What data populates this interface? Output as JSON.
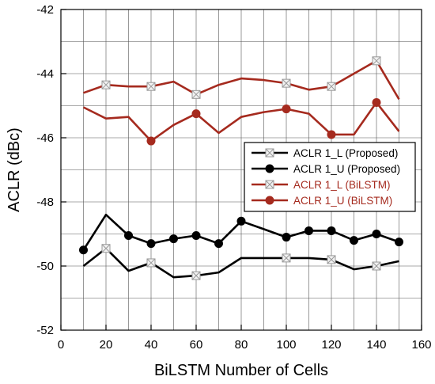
{
  "chart_data": {
    "type": "line",
    "xlabel": "BiLSTM Number of Cells",
    "ylabel": "ACLR (dBc)",
    "xlim": [
      0,
      160
    ],
    "ylim": [
      -52,
      -42
    ],
    "xticks": [
      0,
      20,
      40,
      60,
      80,
      100,
      120,
      140,
      160
    ],
    "yticks": [
      -52,
      -50,
      -48,
      -46,
      -44,
      -42
    ],
    "grid": true,
    "legend_position": "center-right",
    "series": [
      {
        "name": "ACLR 1_L (Proposed)",
        "color": "#000000",
        "marker": "square-x",
        "x": [
          10,
          20,
          30,
          40,
          50,
          60,
          70,
          80,
          90,
          100,
          110,
          120,
          130,
          140,
          150
        ],
        "y": [
          -50.0,
          -49.45,
          -50.15,
          -49.9,
          -50.35,
          -50.3,
          -50.2,
          -49.75,
          -49.75,
          -49.75,
          -49.75,
          -49.8,
          -50.1,
          -50.0,
          -49.85
        ]
      },
      {
        "name": "ACLR 1_U (Proposed)",
        "color": "#000000",
        "marker": "circle",
        "x": [
          10,
          20,
          30,
          40,
          50,
          60,
          70,
          80,
          90,
          100,
          110,
          120,
          130,
          140,
          150
        ],
        "y": [
          -49.5,
          -48.4,
          -49.05,
          -49.3,
          -49.15,
          -49.05,
          -49.3,
          -48.6,
          -48.85,
          -49.1,
          -48.9,
          -48.9,
          -49.2,
          -49.0,
          -49.25
        ]
      },
      {
        "name": "ACLR 1_L (BiLSTM)",
        "color": "#a52a1e",
        "marker": "square-x",
        "x": [
          10,
          20,
          30,
          40,
          50,
          60,
          70,
          80,
          90,
          100,
          110,
          120,
          130,
          140,
          150
        ],
        "y": [
          -44.6,
          -44.35,
          -44.4,
          -44.4,
          -44.25,
          -44.65,
          -44.35,
          -44.15,
          -44.2,
          -44.3,
          -44.5,
          -44.4,
          -44.0,
          -43.6,
          -44.8
        ]
      },
      {
        "name": "ACLR 1_U (BiLSTM)",
        "color": "#a52a1e",
        "marker": "circle",
        "x": [
          10,
          20,
          30,
          40,
          50,
          60,
          70,
          80,
          90,
          100,
          110,
          120,
          130,
          140,
          150
        ],
        "y": [
          -45.05,
          -45.4,
          -45.35,
          -46.1,
          -45.6,
          -45.25,
          -45.85,
          -45.35,
          -45.2,
          -45.1,
          -45.25,
          -45.9,
          -45.9,
          -44.9,
          -45.8
        ]
      }
    ]
  }
}
